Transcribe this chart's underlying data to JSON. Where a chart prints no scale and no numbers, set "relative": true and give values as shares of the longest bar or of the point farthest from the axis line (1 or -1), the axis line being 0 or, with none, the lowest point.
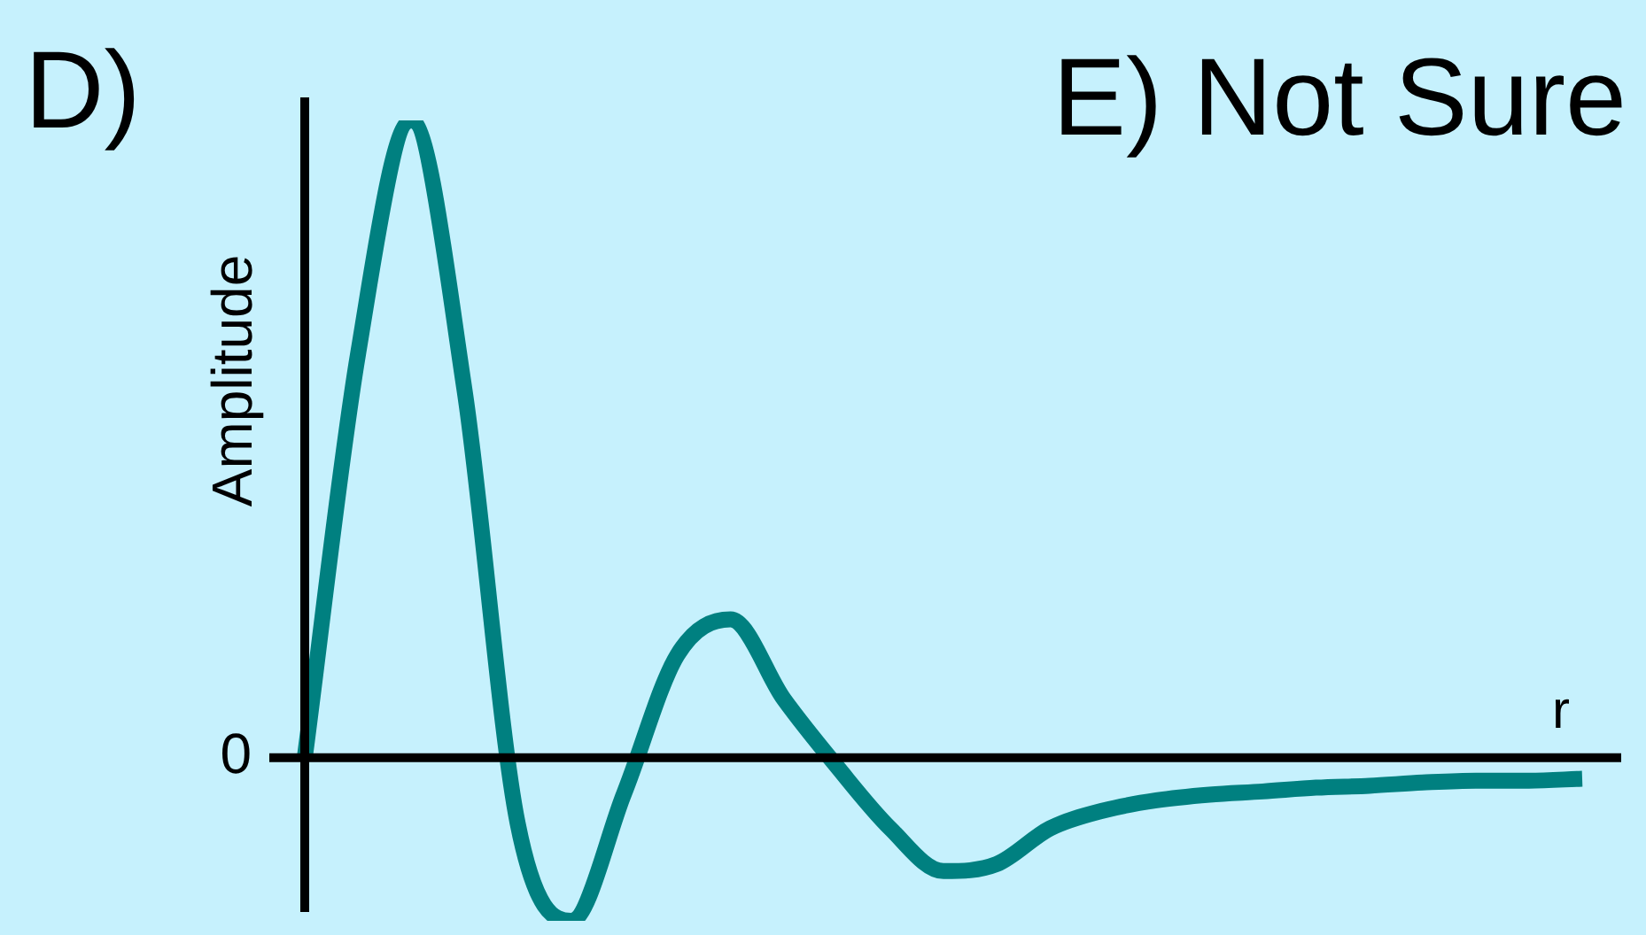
{
  "chart_data": {
    "type": "line",
    "relative": true,
    "ylabel": "Amplitude",
    "xlabel": "r",
    "color": "#008080",
    "marker": "none",
    "annotations": [
      "D)",
      "E) Not Sure",
      "0"
    ],
    "categories": [
      null,
      null,
      null,
      null,
      null,
      null,
      null,
      null,
      null,
      null,
      null,
      null,
      null,
      null,
      null,
      null,
      null,
      null,
      null,
      null,
      null,
      null,
      null,
      null,
      null
    ],
    "values": [
      0,
      0.633,
      1,
      0.578,
      -0.103,
      -0.256,
      -0.056,
      0.161,
      0.217,
      0.092,
      -0.014,
      -0.111,
      -0.178,
      -0.167,
      -0.111,
      -0.083,
      -0.067,
      -0.058,
      -0.053,
      -0.047,
      -0.044,
      -0.039,
      -0.036,
      -0.036,
      -0.033
    ]
  }
}
